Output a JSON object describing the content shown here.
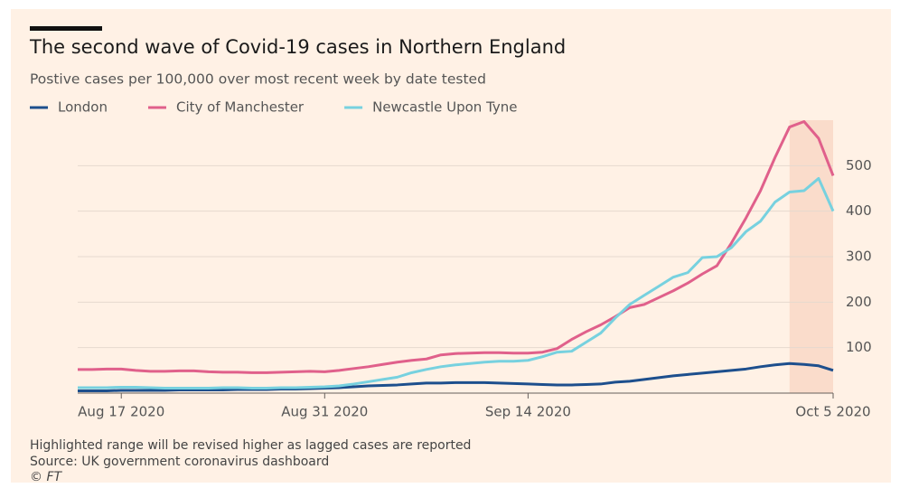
{
  "chart_data": {
    "type": "line",
    "title": "The second wave of Covid-19 cases in Northern England",
    "subtitle": "Postive cases per 100,000 over most recent week by date tested",
    "notes": [
      "Highlighted range will be revised higher as lagged cases are reported",
      "Source: UK government coronavirus dashboard",
      "© FT"
    ],
    "x": [
      "2020-08-14",
      "2020-08-15",
      "2020-08-16",
      "2020-08-17",
      "2020-08-18",
      "2020-08-19",
      "2020-08-20",
      "2020-08-21",
      "2020-08-22",
      "2020-08-23",
      "2020-08-24",
      "2020-08-25",
      "2020-08-26",
      "2020-08-27",
      "2020-08-28",
      "2020-08-29",
      "2020-08-30",
      "2020-08-31",
      "2020-09-01",
      "2020-09-02",
      "2020-09-03",
      "2020-09-04",
      "2020-09-05",
      "2020-09-06",
      "2020-09-07",
      "2020-09-08",
      "2020-09-09",
      "2020-09-10",
      "2020-09-11",
      "2020-09-12",
      "2020-09-13",
      "2020-09-14",
      "2020-09-15",
      "2020-09-16",
      "2020-09-17",
      "2020-09-18",
      "2020-09-19",
      "2020-09-20",
      "2020-09-21",
      "2020-09-22",
      "2020-09-23",
      "2020-09-24",
      "2020-09-25",
      "2020-09-26",
      "2020-09-27",
      "2020-09-28",
      "2020-09-29",
      "2020-09-30",
      "2020-10-01",
      "2020-10-02",
      "2020-10-03",
      "2020-10-04",
      "2020-10-05"
    ],
    "series": [
      {
        "name": "London",
        "color": "#1d4f8d",
        "values": [
          5,
          5,
          5,
          6,
          6,
          6,
          6,
          7,
          7,
          7,
          7,
          8,
          8,
          8,
          9,
          9,
          10,
          11,
          12,
          14,
          16,
          17,
          18,
          20,
          22,
          22,
          23,
          23,
          23,
          22,
          21,
          20,
          19,
          18,
          18,
          19,
          20,
          24,
          26,
          30,
          34,
          38,
          41,
          44,
          47,
          50,
          53,
          58,
          62,
          65,
          63,
          60,
          50
        ]
      },
      {
        "name": "City of Manchester",
        "color": "#e0608b",
        "values": [
          52,
          52,
          53,
          53,
          50,
          48,
          48,
          49,
          49,
          47,
          46,
          46,
          45,
          45,
          46,
          47,
          48,
          47,
          50,
          54,
          58,
          63,
          68,
          72,
          75,
          84,
          87,
          88,
          89,
          89,
          88,
          88,
          90,
          98,
          118,
          135,
          150,
          168,
          188,
          195,
          210,
          225,
          242,
          262,
          280,
          330,
          385,
          445,
          518,
          585,
          597,
          560,
          478
        ]
      },
      {
        "name": "Newcastle Upon Tyne",
        "color": "#77d1df",
        "values": [
          12,
          12,
          12,
          13,
          13,
          12,
          11,
          11,
          11,
          11,
          12,
          12,
          11,
          11,
          12,
          12,
          13,
          14,
          16,
          20,
          25,
          30,
          35,
          45,
          52,
          58,
          62,
          65,
          68,
          70,
          70,
          72,
          80,
          90,
          92,
          112,
          132,
          165,
          195,
          215,
          235,
          255,
          265,
          298,
          300,
          320,
          355,
          378,
          420,
          442,
          445,
          472,
          400
        ]
      }
    ],
    "xlim": [
      "2020-08-14",
      "2020-10-05"
    ],
    "xticks": [
      {
        "value": "2020-08-17",
        "label": "Aug 17 2020"
      },
      {
        "value": "2020-08-31",
        "label": "Aug 31 2020"
      },
      {
        "value": "2020-09-14",
        "label": "Sep 14 2020"
      },
      {
        "value": "2020-10-05",
        "label": "Oct 5 2020"
      }
    ],
    "ylim": [
      0,
      600
    ],
    "yticks": [
      100,
      200,
      300,
      400,
      500
    ],
    "grid": true,
    "highlight": [
      "2020-10-02",
      "2020-10-05"
    ],
    "legend": "top"
  }
}
